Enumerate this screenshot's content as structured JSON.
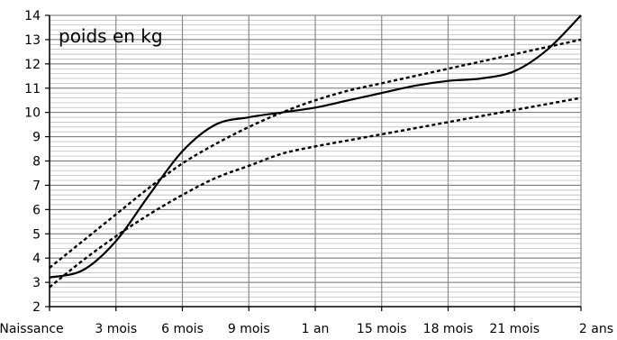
{
  "chart_data": {
    "type": "line",
    "title": "poids en kg",
    "xlabel": "",
    "ylabel": "",
    "x_categories": [
      "Naissance",
      "3 mois",
      "6 mois",
      "9 mois",
      "1 an",
      "15 mois",
      "18 mois",
      "21 mois",
      "2 ans"
    ],
    "y_ticks": [
      2,
      3,
      4,
      5,
      6,
      7,
      8,
      9,
      10,
      11,
      12,
      13,
      14
    ],
    "ylim": [
      2,
      14
    ],
    "xlim": [
      0,
      8
    ],
    "grid": {
      "major": true,
      "minor_y_step": 0.2
    },
    "legend": "none",
    "series": [
      {
        "style": "solid",
        "color": "#000000",
        "x": [
          0,
          0.5,
          1,
          1.5,
          2,
          2.5,
          3,
          3.5,
          4,
          4.5,
          5,
          5.5,
          6,
          6.5,
          7,
          7.5,
          8
        ],
        "y": [
          3.2,
          3.5,
          4.7,
          6.6,
          8.4,
          9.5,
          9.8,
          10.0,
          10.2,
          10.5,
          10.8,
          11.1,
          11.3,
          11.4,
          11.7,
          12.6,
          14.0
        ]
      },
      {
        "style": "dotted",
        "color": "#000000",
        "x": [
          0,
          0.5,
          1,
          1.5,
          2,
          2.5,
          3,
          3.5,
          4,
          4.5,
          5,
          5.5,
          6,
          6.5,
          7,
          7.5,
          8
        ],
        "y": [
          3.6,
          4.7,
          5.8,
          6.9,
          7.9,
          8.7,
          9.4,
          10.0,
          10.5,
          10.9,
          11.2,
          11.5,
          11.8,
          12.1,
          12.4,
          12.7,
          13.0
        ]
      },
      {
        "style": "dotted",
        "color": "#000000",
        "x": [
          0,
          0.5,
          1,
          1.5,
          2,
          2.5,
          3,
          3.5,
          4,
          4.5,
          5,
          5.5,
          6,
          6.5,
          7,
          7.5,
          8
        ],
        "y": [
          2.8,
          3.9,
          4.9,
          5.8,
          6.6,
          7.3,
          7.8,
          8.3,
          8.6,
          8.85,
          9.1,
          9.35,
          9.6,
          9.85,
          10.1,
          10.35,
          10.6
        ]
      }
    ]
  }
}
